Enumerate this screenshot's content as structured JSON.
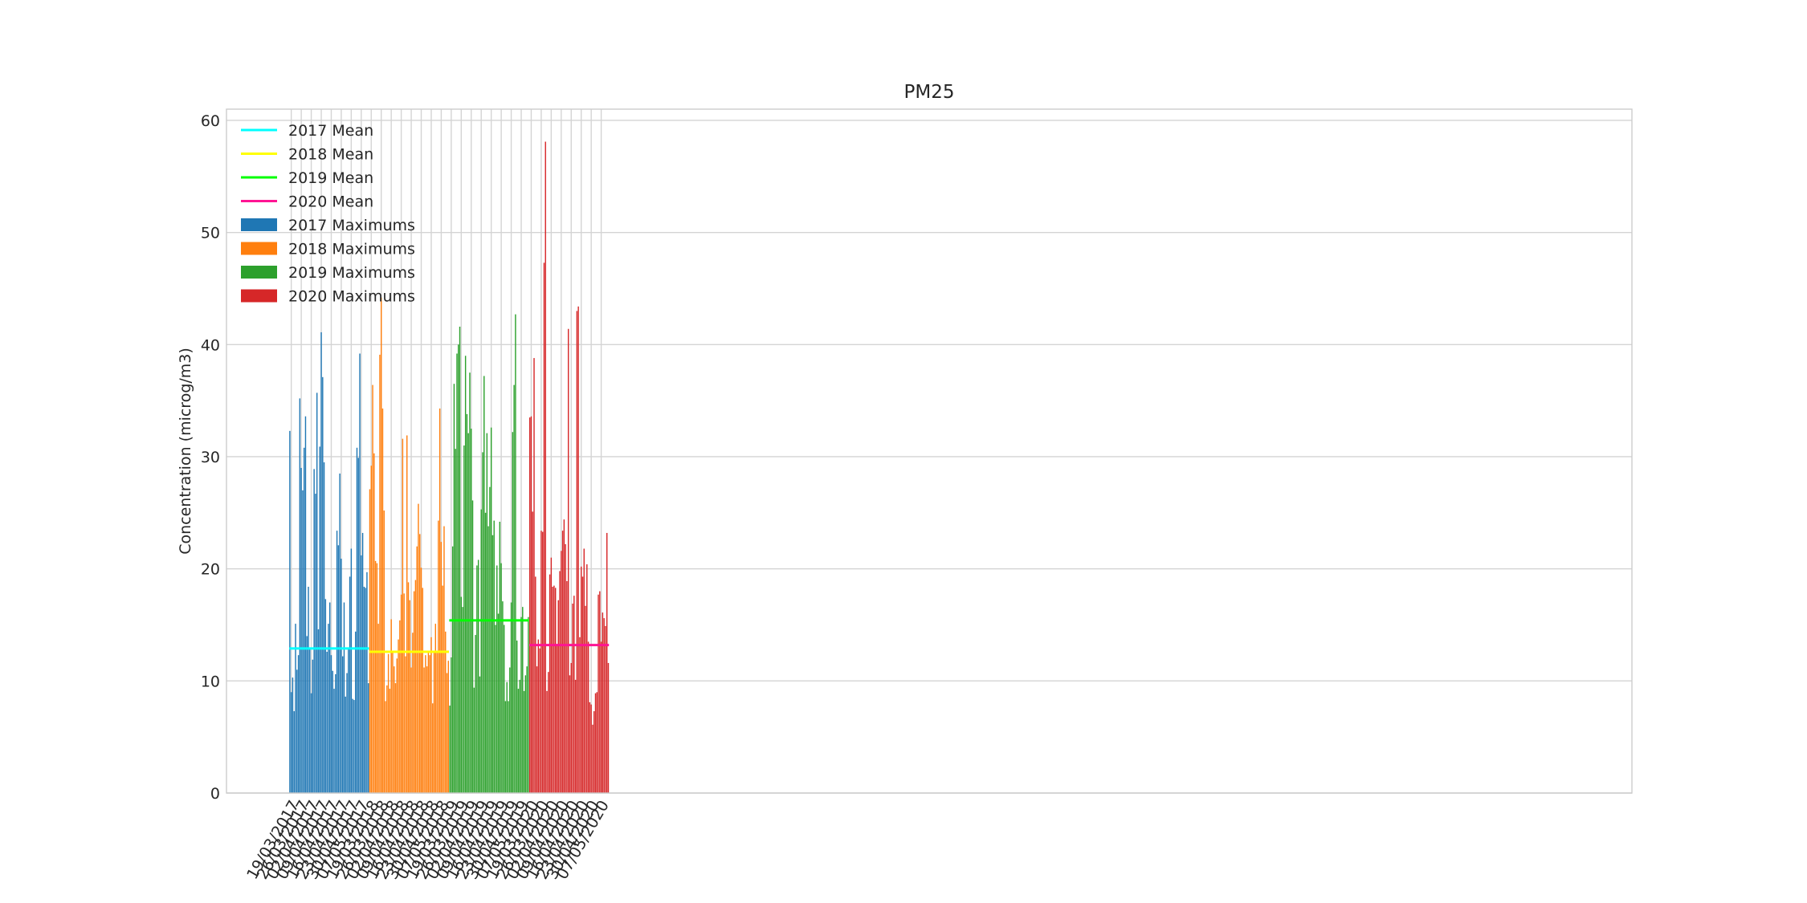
{
  "chart_data": {
    "type": "bar",
    "title": "PM25",
    "xlabel": "",
    "ylabel": "Concentration (microg/m3)",
    "ylim": [
      0,
      61
    ],
    "yticks": [
      0,
      10,
      20,
      30,
      40,
      50,
      60
    ],
    "grid": true,
    "legend_position": "top-left",
    "series": [
      {
        "name": "2017 Maximums",
        "mean_name": "2017 Mean",
        "color": "#1f77b4",
        "mean_color": "#00ffff",
        "mean": 12.9,
        "tick_labels": [
          "19/03/2017",
          "26/03/2017",
          "02/04/2017",
          "09/04/2017",
          "16/04/2017",
          "23/04/2017",
          "30/04/2017",
          "07/05/2017"
        ],
        "values": [
          32.3,
          9.0,
          10.3,
          7.3,
          15.1,
          11.0,
          12.3,
          35.2,
          29.0,
          27.0,
          30.8,
          33.6,
          14.0,
          18.4,
          12.9,
          8.9,
          11.9,
          28.9,
          26.7,
          35.7,
          14.6,
          30.9,
          41.1,
          37.1,
          29.5,
          17.3,
          12.6,
          15.1,
          17.0,
          12.3,
          10.9,
          9.3,
          10.6,
          23.4,
          22.1,
          28.5,
          20.9,
          12.2,
          17.0,
          8.6,
          10.7,
          12.9,
          19.3,
          21.8,
          8.4,
          8.3,
          14.4,
          30.8,
          29.9,
          39.2,
          21.2,
          23.2,
          18.4,
          18.3,
          19.7,
          9.8
        ]
      },
      {
        "name": "2018 Maximums",
        "mean_name": "2018 Mean",
        "color": "#ff7f0e",
        "mean_color": "#ffff00",
        "mean": 12.6,
        "tick_labels": [
          "19/03/2018",
          "26/03/2018",
          "02/04/2018",
          "09/04/2018",
          "16/04/2018",
          "23/04/2018",
          "30/04/2018",
          "07/05/2018"
        ],
        "values": [
          27.1,
          29.2,
          36.4,
          30.3,
          20.7,
          20.5,
          15.1,
          39.1,
          44.2,
          34.3,
          25.2,
          8.2,
          9.6,
          12.4,
          9.3,
          15.5,
          12.5,
          11.3,
          9.8,
          12.0,
          13.7,
          15.4,
          17.7,
          31.6,
          17.8,
          12.2,
          31.9,
          18.8,
          17.2,
          11.2,
          14.3,
          18.0,
          19.0,
          22.0,
          25.8,
          23.1,
          20.1,
          18.3,
          11.2,
          12.3,
          11.3,
          12.6,
          12.3,
          13.9,
          8.0,
          12.7,
          15.1,
          12.5,
          24.3,
          34.3,
          22.4,
          18.5,
          23.8,
          14.4,
          10.7,
          11.8
        ]
      },
      {
        "name": "2019 Maximums",
        "mean_name": "2019 Mean",
        "color": "#2ca02c",
        "mean_color": "#00ff00",
        "mean": 15.4,
        "tick_labels": [
          "19/03/2019",
          "26/03/2019",
          "02/04/2019",
          "09/04/2019",
          "16/04/2019",
          "23/04/2019",
          "30/04/2019",
          "07/05/2019"
        ],
        "values": [
          7.8,
          12.1,
          22.0,
          36.5,
          30.7,
          39.2,
          40.0,
          41.6,
          17.5,
          16.6,
          31.0,
          39.0,
          33.8,
          32.1,
          37.5,
          32.5,
          26.1,
          9.4,
          14.1,
          20.3,
          20.8,
          10.4,
          25.3,
          30.4,
          37.2,
          25.0,
          32.1,
          23.8,
          27.3,
          32.6,
          23.0,
          24.3,
          15.0,
          20.3,
          16.0,
          24.2,
          20.5,
          17.1,
          15.0,
          8.2,
          9.9,
          8.2,
          11.2,
          17.0,
          32.2,
          36.4,
          42.7,
          13.6,
          9.3,
          10.1,
          15.7,
          16.6,
          9.1,
          10.5,
          11.3,
          15.7
        ]
      },
      {
        "name": "2020 Maximums",
        "mean_name": "2020 Mean",
        "color": "#d62728",
        "mean_color": "#ff1493",
        "mean": 13.2,
        "tick_labels": [
          "19/03/2020",
          "26/03/2020",
          "02/04/2020",
          "09/04/2020",
          "16/04/2020",
          "23/04/2020",
          "30/04/2020",
          "07/05/2020"
        ],
        "values": [
          33.5,
          33.6,
          25.1,
          38.8,
          19.3,
          11.3,
          13.7,
          12.9,
          23.4,
          23.3,
          47.3,
          58.1,
          9.1,
          10.8,
          19.5,
          21.0,
          18.4,
          18.5,
          18.3,
          13.1,
          17.2,
          19.8,
          21.6,
          23.4,
          24.4,
          22.2,
          18.9,
          41.4,
          10.5,
          11.6,
          16.9,
          17.6,
          10.1,
          43.0,
          43.4,
          13.9,
          20.2,
          19.3,
          21.8,
          16.7,
          20.4,
          13.5,
          8.1,
          7.9,
          6.1,
          7.3,
          8.9,
          9.0,
          17.7,
          18.0,
          13.5,
          16.1,
          15.6,
          14.9,
          23.2,
          11.6
        ]
      }
    ]
  }
}
